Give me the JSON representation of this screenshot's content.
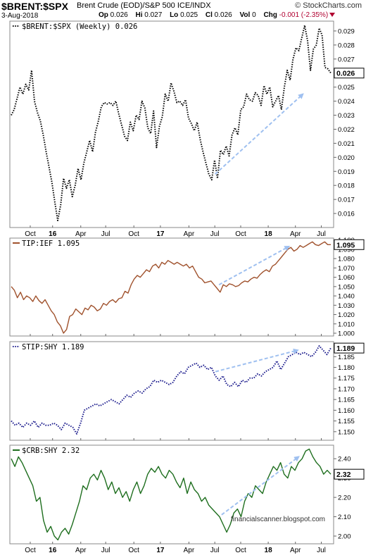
{
  "header": {
    "symbol": "$BRENT:$SPX",
    "description": "Brent Crude (EOD)/S&P 500 ICE/INDX",
    "brand": "© StockCharts.com",
    "date": "3-Aug-2018",
    "open_label": "Op",
    "open": "0.026",
    "high_label": "Hi",
    "high": "0.027",
    "low_label": "Lo",
    "low": "0.025",
    "close_label": "Cl",
    "close": "0.026",
    "vol_label": "Vol",
    "vol": "0",
    "chg_label": "Chg",
    "chg": "-0.001 (-2.35%)",
    "chg_color": "#b00030"
  },
  "watermark": "financialscanner.blogspot.com",
  "x_tick_labels": [
    "Oct",
    "16",
    "Apr",
    "Jul",
    "Oct",
    "17",
    "Apr",
    "Jul",
    "Oct",
    "18",
    "Apr",
    "Jul"
  ],
  "chart_data": [
    {
      "type": "line",
      "legend": "$BRENT:$SPX (Weekly) 0.026",
      "color": "#000000",
      "line_style": "dotted",
      "ylim": [
        0.015,
        0.0297
      ],
      "yticks": [
        0.016,
        0.017,
        0.018,
        0.019,
        0.02,
        0.021,
        0.022,
        0.023,
        0.024,
        0.025,
        0.026,
        0.027,
        0.028,
        0.029
      ],
      "ytick_labels": [
        "0.016",
        "0.017",
        "0.018",
        "0.019",
        "0.020",
        "0.021",
        "0.022",
        "0.023",
        "0.024",
        "0.025",
        "0.026",
        "0.027",
        "0.028",
        "0.029"
      ],
      "last_value_label": "0.026",
      "x_start": "2015-08-07",
      "weeks": 157,
      "values": [
        0.023,
        0.0234,
        0.0242,
        0.025,
        0.0245,
        0.0252,
        0.0248,
        0.0262,
        0.024,
        0.0232,
        0.0226,
        0.0216,
        0.0204,
        0.0193,
        0.0182,
        0.0168,
        0.0155,
        0.0166,
        0.0185,
        0.0178,
        0.0184,
        0.0172,
        0.018,
        0.0192,
        0.0184,
        0.0196,
        0.0204,
        0.0212,
        0.0204,
        0.0218,
        0.0226,
        0.0236,
        0.0239,
        0.0238,
        0.0239,
        0.0237,
        0.024,
        0.0231,
        0.0223,
        0.0215,
        0.0212,
        0.0225,
        0.0219,
        0.023,
        0.0227,
        0.024,
        0.0235,
        0.0221,
        0.0217,
        0.0233,
        0.0207,
        0.0222,
        0.0229,
        0.0245,
        0.024,
        0.0253,
        0.0247,
        0.0239,
        0.024,
        0.0237,
        0.0241,
        0.0228,
        0.0224,
        0.0219,
        0.0225,
        0.0213,
        0.0204,
        0.0196,
        0.0188,
        0.0184,
        0.0198,
        0.0185,
        0.0205,
        0.0202,
        0.0208,
        0.0201,
        0.0216,
        0.0221,
        0.0216,
        0.0234,
        0.0236,
        0.0245,
        0.0241,
        0.024,
        0.0246,
        0.0244,
        0.0237,
        0.0251,
        0.0245,
        0.025,
        0.0236,
        0.024,
        0.0244,
        0.0234,
        0.025,
        0.0262,
        0.0255,
        0.027,
        0.0278,
        0.0276,
        0.0285,
        0.0294,
        0.0283,
        0.0262,
        0.0277,
        0.028,
        0.0292,
        0.0287,
        0.0264,
        0.0263,
        0.026
      ]
    },
    {
      "type": "line",
      "legend": "TIP:IEF 1.095",
      "color": "#a0522d",
      "line_style": "solid",
      "ylim": [
        0.997,
        1.102
      ],
      "yticks": [
        1.0,
        1.01,
        1.02,
        1.03,
        1.04,
        1.05,
        1.06,
        1.07,
        1.08,
        1.09,
        1.1
      ],
      "ytick_labels": [
        "1.000",
        "1.010",
        "1.020",
        "1.030",
        "1.040",
        "1.050",
        "1.060",
        "1.070",
        "1.080",
        "1.090",
        "1.100"
      ],
      "last_value_label": "1.095",
      "x_start": "2015-08-07",
      "weeks": 157,
      "values": [
        1.05,
        1.046,
        1.038,
        1.044,
        1.036,
        1.04,
        1.038,
        1.034,
        1.04,
        1.035,
        1.032,
        1.036,
        1.03,
        1.024,
        1.02,
        1.012,
        1.008,
        1.0,
        1.004,
        1.018,
        1.02,
        1.026,
        1.023,
        1.02,
        1.027,
        1.025,
        1.03,
        1.028,
        1.024,
        1.026,
        1.032,
        1.03,
        1.034,
        1.036,
        1.033,
        1.037,
        1.038,
        1.045,
        1.043,
        1.052,
        1.058,
        1.062,
        1.06,
        1.064,
        1.068,
        1.066,
        1.072,
        1.074,
        1.07,
        1.076,
        1.074,
        1.078,
        1.076,
        1.074,
        1.076,
        1.074,
        1.072,
        1.074,
        1.07,
        1.072,
        1.066,
        1.06,
        1.058,
        1.054,
        1.055,
        1.056,
        1.052,
        1.048,
        1.044,
        1.052,
        1.05,
        1.053,
        1.052,
        1.05,
        1.051,
        1.054,
        1.056,
        1.055,
        1.058,
        1.06,
        1.059,
        1.063,
        1.066,
        1.068,
        1.066,
        1.072,
        1.074,
        1.078,
        1.082,
        1.086,
        1.09,
        1.092,
        1.088,
        1.09,
        1.094,
        1.092,
        1.094,
        1.096,
        1.098,
        1.095,
        1.094,
        1.096,
        1.098,
        1.095,
        1.095
      ]
    },
    {
      "type": "line",
      "legend": "STIP:SHY 1.189",
      "color": "#1a1a8c",
      "line_style": "dotted",
      "ylim": [
        1.146,
        1.192
      ],
      "yticks": [
        1.15,
        1.155,
        1.16,
        1.165,
        1.17,
        1.175,
        1.18,
        1.185,
        1.19
      ],
      "ytick_labels": [
        "1.150",
        "1.155",
        "1.160",
        "1.165",
        "1.170",
        "1.175",
        "1.180",
        "1.185",
        "1.190"
      ],
      "last_value_label": "1.189",
      "x_start": "2015-08-07",
      "weeks": 157,
      "values": [
        1.155,
        1.153,
        1.154,
        1.152,
        1.154,
        1.153,
        1.155,
        1.152,
        1.154,
        1.153,
        1.153,
        1.154,
        1.153,
        1.151,
        1.154,
        1.153,
        1.152,
        1.149,
        1.154,
        1.16,
        1.161,
        1.162,
        1.163,
        1.162,
        1.163,
        1.164,
        1.165,
        1.164,
        1.163,
        1.165,
        1.167,
        1.166,
        1.168,
        1.169,
        1.168,
        1.17,
        1.171,
        1.174,
        1.173,
        1.174,
        1.173,
        1.172,
        1.173,
        1.176,
        1.178,
        1.177,
        1.18,
        1.181,
        1.182,
        1.18,
        1.181,
        1.179,
        1.18,
        1.176,
        1.174,
        1.176,
        1.172,
        1.171,
        1.173,
        1.171,
        1.174,
        1.173,
        1.175,
        1.175,
        1.177,
        1.176,
        1.178,
        1.179,
        1.18,
        1.183,
        1.179,
        1.182,
        1.185,
        1.186,
        1.187,
        1.186,
        1.187,
        1.186,
        1.185,
        1.187,
        1.19,
        1.188,
        1.186,
        1.189
      ]
    },
    {
      "type": "line",
      "legend": "$CRB:SHY 2.32",
      "color": "#1e6e1e",
      "line_style": "solid",
      "ylim": [
        1.96,
        2.47
      ],
      "yticks": [
        2.0,
        2.1,
        2.2,
        2.3,
        2.4
      ],
      "ytick_labels": [
        "2.00",
        "2.10",
        "2.20",
        "2.30",
        "2.40"
      ],
      "last_value_label": "2.32",
      "x_start": "2015-08-07",
      "weeks": 157,
      "values": [
        2.4,
        2.36,
        2.41,
        2.38,
        2.34,
        2.3,
        2.26,
        2.18,
        2.2,
        2.08,
        2.02,
        2.05,
        2.0,
        1.98,
        2.02,
        2.04,
        2.01,
        2.06,
        2.12,
        2.18,
        2.26,
        2.24,
        2.3,
        2.32,
        2.29,
        2.34,
        2.3,
        2.24,
        2.28,
        2.22,
        2.25,
        2.2,
        2.23,
        2.18,
        2.24,
        2.28,
        2.22,
        2.26,
        2.32,
        2.35,
        2.33,
        2.36,
        2.32,
        2.3,
        2.34,
        2.32,
        2.28,
        2.25,
        2.3,
        2.22,
        2.28,
        2.24,
        2.22,
        2.18,
        2.2,
        2.16,
        2.14,
        2.12,
        2.1,
        2.06,
        2.02,
        2.06,
        2.12,
        2.14,
        2.1,
        2.18,
        2.22,
        2.2,
        2.26,
        2.24,
        2.22,
        2.28,
        2.32,
        2.36,
        2.34,
        2.38,
        2.32,
        2.3,
        2.36,
        2.34,
        2.38,
        2.4,
        2.44,
        2.45,
        2.41,
        2.38,
        2.36,
        2.32,
        2.34,
        2.32
      ]
    }
  ]
}
